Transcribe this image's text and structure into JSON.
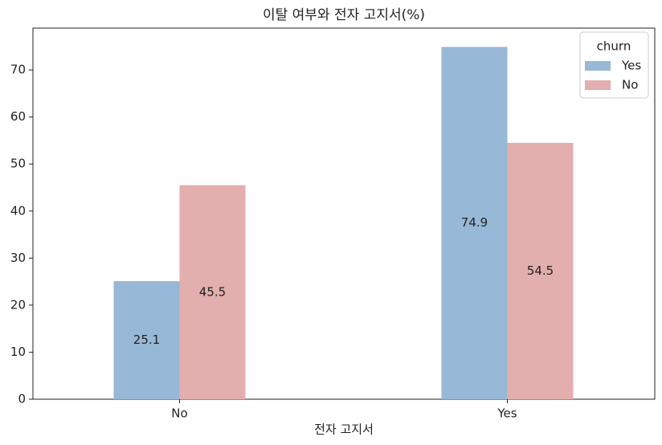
{
  "chart_data": {
    "type": "bar",
    "title": "이탈 여부와 전자 고지서(%)",
    "x_label": "전자 고지서",
    "categories": [
      "No",
      "Yes"
    ],
    "series": [
      {
        "name": "Yes",
        "color": "#97b8d6",
        "values": [
          25.1,
          74.9
        ]
      },
      {
        "name": "No",
        "color": "#e2aeae",
        "values": [
          45.5,
          54.5
        ]
      }
    ],
    "legend_title": "churn",
    "legend": "upper right",
    "ylim": [
      0,
      78.9
    ],
    "yticks": [
      0,
      10,
      20,
      30,
      40,
      50,
      60,
      70
    ],
    "grid": false
  }
}
